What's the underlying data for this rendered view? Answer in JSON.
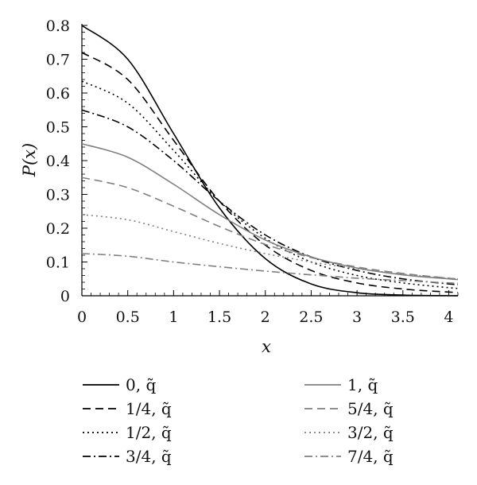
{
  "chart_data": {
    "type": "line",
    "title": "",
    "xlabel": "x",
    "ylabel": "P(x)",
    "xlim": [
      0,
      4.1
    ],
    "ylim": [
      0,
      0.8
    ],
    "grid": false,
    "legend_position": "bottom",
    "x_ticks": [
      "0",
      "0.5",
      "1",
      "1.5",
      "2",
      "2.5",
      "3",
      "3.5",
      "4"
    ],
    "y_ticks": [
      "0",
      "0.1",
      "0.2",
      "0.3",
      "0.4",
      "0.5",
      "0.6",
      "0.7",
      "0.8"
    ],
    "x": [
      0,
      0.5,
      1,
      1.5,
      2,
      2.5,
      3,
      3.5,
      4,
      4.1
    ],
    "series": [
      {
        "name": "0, q̃",
        "color": "#000000",
        "dash": "solid",
        "values": [
          0.8,
          0.7,
          0.48,
          0.26,
          0.11,
          0.035,
          0.009,
          0.002,
          0.0003,
          0.0002
        ]
      },
      {
        "name": "1/4, q̃",
        "color": "#000000",
        "dash": "dashed",
        "values": [
          0.72,
          0.64,
          0.46,
          0.28,
          0.15,
          0.075,
          0.038,
          0.02,
          0.011,
          0.01
        ]
      },
      {
        "name": "1/2, q̃",
        "color": "#000000",
        "dash": "dotted",
        "values": [
          0.635,
          0.57,
          0.43,
          0.28,
          0.17,
          0.1,
          0.06,
          0.038,
          0.024,
          0.022
        ]
      },
      {
        "name": "3/4, q̃",
        "color": "#000000",
        "dash": "dashdot",
        "values": [
          0.55,
          0.5,
          0.4,
          0.28,
          0.18,
          0.115,
          0.075,
          0.05,
          0.035,
          0.033
        ]
      },
      {
        "name": "1, q̃",
        "color": "#808080",
        "dash": "solid",
        "values": [
          0.45,
          0.41,
          0.33,
          0.24,
          0.165,
          0.115,
          0.082,
          0.062,
          0.05,
          0.048
        ]
      },
      {
        "name": "5/4, q̃",
        "color": "#808080",
        "dash": "dashed",
        "values": [
          0.35,
          0.32,
          0.265,
          0.205,
          0.152,
          0.113,
          0.085,
          0.066,
          0.052,
          0.05
        ]
      },
      {
        "name": "3/2, q̃",
        "color": "#808080",
        "dash": "dotted",
        "values": [
          0.24,
          0.225,
          0.19,
          0.155,
          0.125,
          0.1,
          0.08,
          0.064,
          0.052,
          0.05
        ]
      },
      {
        "name": "7/4, q̃",
        "color": "#808080",
        "dash": "dashdot",
        "values": [
          0.125,
          0.117,
          0.1,
          0.086,
          0.073,
          0.062,
          0.052,
          0.045,
          0.038,
          0.037
        ]
      }
    ]
  }
}
